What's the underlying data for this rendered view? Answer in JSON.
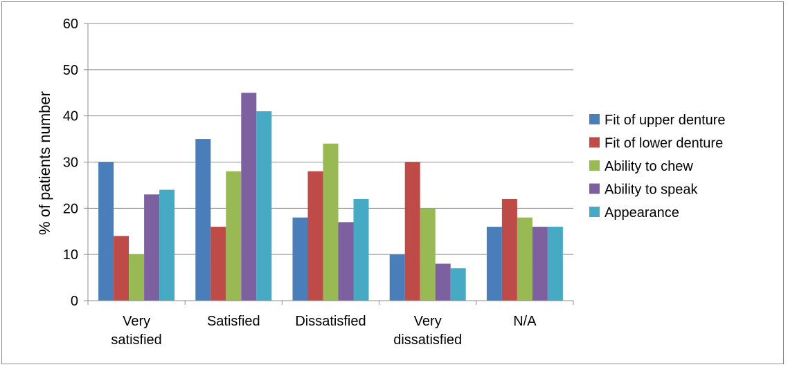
{
  "chart_data": {
    "type": "bar",
    "title": "",
    "xlabel": "",
    "ylabel": "% of patients number",
    "ylim": [
      0,
      60
    ],
    "yticks": [
      0,
      10,
      20,
      30,
      40,
      50,
      60
    ],
    "grid": true,
    "legend_position": "right",
    "categories": [
      [
        "Very",
        "satisfied"
      ],
      [
        "Satisfied"
      ],
      [
        "Dissatisfied"
      ],
      [
        "Very",
        "dissatisfied"
      ],
      [
        "N/A"
      ]
    ],
    "series": [
      {
        "name": "Fit of upper denture",
        "color": "#4a7ebb",
        "values": [
          30,
          35,
          18,
          10,
          16
        ]
      },
      {
        "name": "Fit of lower denture",
        "color": "#be4b48",
        "values": [
          14,
          16,
          28,
          30,
          22
        ]
      },
      {
        "name": "Ability to chew",
        "color": "#98b954",
        "values": [
          10,
          28,
          34,
          20,
          18
        ]
      },
      {
        "name": "Ability to speak",
        "color": "#7d60a0",
        "values": [
          23,
          45,
          17,
          8,
          16
        ]
      },
      {
        "name": "Appearance",
        "color": "#46aac5",
        "values": [
          24,
          41,
          22,
          7,
          16
        ]
      }
    ]
  }
}
